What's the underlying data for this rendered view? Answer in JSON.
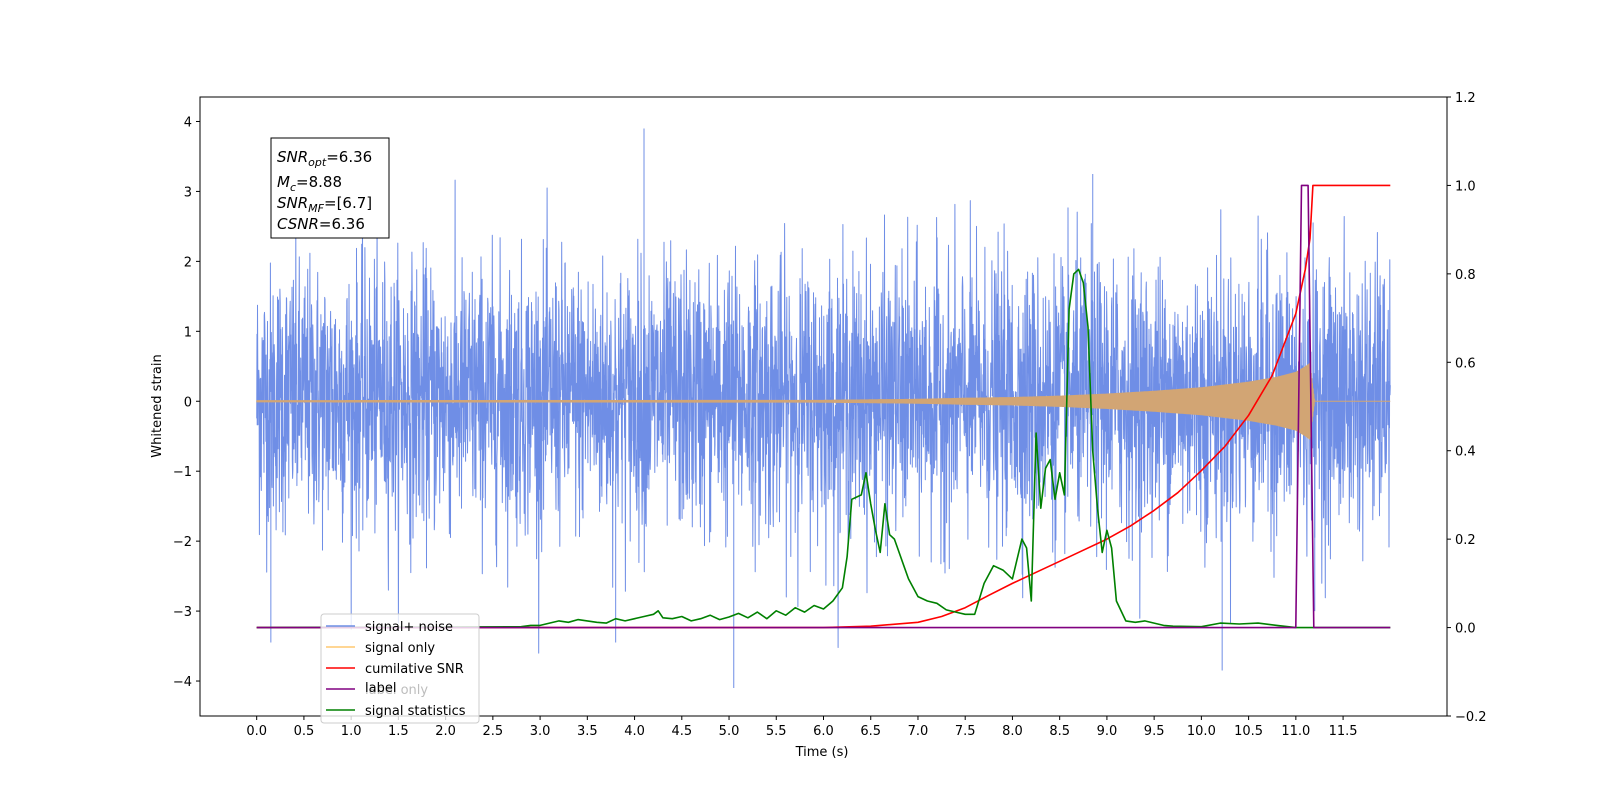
{
  "chart_data": {
    "type": "line",
    "xlabel": "Time (s)",
    "ylabel": "Whitened strain",
    "xlim": [
      -0.6,
      12.6
    ],
    "ylim": [
      -4.5,
      4.35
    ],
    "ylim_right": [
      -0.2,
      1.2
    ],
    "x_ticks": [
      "0.0",
      "0.5",
      "1.0",
      "1.5",
      "2.0",
      "2.5",
      "3.0",
      "3.5",
      "4.0",
      "4.5",
      "5.0",
      "5.5",
      "6.0",
      "6.5",
      "7.0",
      "7.5",
      "8.0",
      "8.5",
      "9.0",
      "9.5",
      "10.0",
      "10.5",
      "11.0",
      "11.5"
    ],
    "y_ticks": [
      "4",
      "3",
      "2",
      "1",
      "0",
      "−1",
      "−2",
      "−3",
      "−4"
    ],
    "y_ticks_right": [
      "1.2",
      "1.0",
      "0.8",
      "0.6",
      "0.4",
      "0.2",
      "0.0",
      "−0.2"
    ],
    "annotation": {
      "lines": [
        {
          "sym": "SNR",
          "sub": "opt",
          "value": "=6.36"
        },
        {
          "sym": "M",
          "sub": "c",
          "value": "=8.88"
        },
        {
          "sym": "SNR",
          "sub": "MF",
          "value": "=[6.7]"
        },
        {
          "sym": "CSNR",
          "sub": "",
          "value": "=6.36"
        }
      ]
    },
    "legend": {
      "placement": "lower-left",
      "entries": [
        {
          "label": "signal+ noise",
          "color": "#6f8ee6"
        },
        {
          "label": "signal only",
          "color": "#ffc870"
        },
        {
          "label": "cumilative SNR",
          "color": "#ff0000"
        },
        {
          "label": "label",
          "color": "#800080"
        },
        {
          "label": "signal statistics",
          "color": "#008000"
        }
      ],
      "hidden_text": "label only"
    },
    "series": [
      {
        "name": "signal+ noise",
        "axis": "left",
        "color": "#6f8ee6",
        "description_envelope": [
          [
            0.0,
            -2.4,
            1.6
          ],
          [
            1.0,
            -2.6,
            2.2
          ],
          [
            2.0,
            -2.6,
            3.5
          ],
          [
            4.0,
            -2.9,
            3.9
          ],
          [
            5.0,
            -4.1,
            2.3
          ],
          [
            8.0,
            -3.0,
            2.8
          ],
          [
            10.2,
            -3.85,
            2.7
          ],
          [
            12.0,
            -2.5,
            2.4
          ]
        ]
      },
      {
        "name": "signal only",
        "axis": "left",
        "color": "#d2a574",
        "envelope_x": [
          0.0,
          6.0,
          7.0,
          7.5,
          8.0,
          8.5,
          9.0,
          9.5,
          10.0,
          10.5,
          10.8,
          11.0,
          11.1,
          11.15,
          11.2,
          12.0
        ],
        "envelope_amp": [
          0.015,
          0.02,
          0.035,
          0.05,
          0.06,
          0.08,
          0.11,
          0.15,
          0.2,
          0.28,
          0.35,
          0.42,
          0.5,
          0.55,
          0.0,
          0.0
        ]
      },
      {
        "name": "cumilative SNR",
        "axis": "right",
        "color": "#ff0000",
        "x": [
          0.0,
          6.0,
          6.5,
          7.0,
          7.25,
          7.5,
          7.75,
          8.0,
          8.25,
          8.5,
          8.75,
          9.0,
          9.25,
          9.5,
          9.75,
          10.0,
          10.25,
          10.5,
          10.75,
          11.0,
          11.1,
          11.15,
          11.18,
          12.0
        ],
        "y": [
          0.0,
          0.0,
          0.003,
          0.012,
          0.025,
          0.045,
          0.073,
          0.1,
          0.125,
          0.15,
          0.175,
          0.2,
          0.23,
          0.265,
          0.305,
          0.355,
          0.41,
          0.48,
          0.57,
          0.71,
          0.81,
          0.88,
          1.0,
          1.0
        ]
      },
      {
        "name": "label",
        "axis": "right",
        "color": "#800080",
        "x": [
          0.0,
          11.0,
          11.06,
          11.13,
          11.19,
          12.0
        ],
        "y": [
          0.0,
          0.0,
          1.0,
          1.0,
          0.0,
          0.0
        ]
      },
      {
        "name": "signal statistics",
        "axis": "right",
        "color": "#008000",
        "x": [
          0.0,
          2.8,
          2.9,
          3.0,
          3.1,
          3.2,
          3.3,
          3.4,
          3.5,
          3.6,
          3.7,
          3.8,
          3.9,
          4.0,
          4.1,
          4.2,
          4.25,
          4.3,
          4.4,
          4.5,
          4.6,
          4.7,
          4.8,
          4.9,
          5.0,
          5.1,
          5.2,
          5.3,
          5.4,
          5.5,
          5.6,
          5.7,
          5.8,
          5.9,
          6.0,
          6.1,
          6.2,
          6.25,
          6.3,
          6.4,
          6.45,
          6.5,
          6.55,
          6.6,
          6.65,
          6.7,
          6.75,
          6.8,
          6.85,
          6.9,
          7.0,
          7.1,
          7.2,
          7.3,
          7.4,
          7.5,
          7.6,
          7.7,
          7.8,
          7.9,
          8.0,
          8.1,
          8.15,
          8.2,
          8.25,
          8.3,
          8.35,
          8.4,
          8.45,
          8.5,
          8.55,
          8.6,
          8.65,
          8.7,
          8.75,
          8.8,
          8.85,
          8.9,
          8.95,
          9.0,
          9.05,
          9.1,
          9.2,
          9.3,
          9.4,
          9.5,
          9.6,
          9.7,
          10.0,
          10.2,
          10.4,
          10.6,
          10.8,
          11.0,
          12.0
        ],
        "y": [
          0.0,
          0.002,
          0.005,
          0.005,
          0.01,
          0.015,
          0.012,
          0.018,
          0.015,
          0.012,
          0.01,
          0.02,
          0.015,
          0.02,
          0.025,
          0.03,
          0.038,
          0.022,
          0.02,
          0.025,
          0.015,
          0.02,
          0.028,
          0.018,
          0.024,
          0.032,
          0.022,
          0.035,
          0.02,
          0.038,
          0.028,
          0.045,
          0.035,
          0.05,
          0.042,
          0.06,
          0.09,
          0.16,
          0.29,
          0.3,
          0.35,
          0.28,
          0.22,
          0.17,
          0.28,
          0.21,
          0.2,
          0.17,
          0.14,
          0.11,
          0.07,
          0.06,
          0.055,
          0.04,
          0.035,
          0.03,
          0.03,
          0.1,
          0.14,
          0.13,
          0.11,
          0.2,
          0.18,
          0.06,
          0.44,
          0.27,
          0.36,
          0.38,
          0.29,
          0.35,
          0.3,
          0.72,
          0.8,
          0.81,
          0.78,
          0.68,
          0.4,
          0.27,
          0.17,
          0.22,
          0.18,
          0.06,
          0.015,
          0.012,
          0.015,
          0.01,
          0.005,
          0.003,
          0.002,
          0.01,
          0.008,
          0.01,
          0.005,
          0.0,
          0.0
        ]
      }
    ]
  }
}
